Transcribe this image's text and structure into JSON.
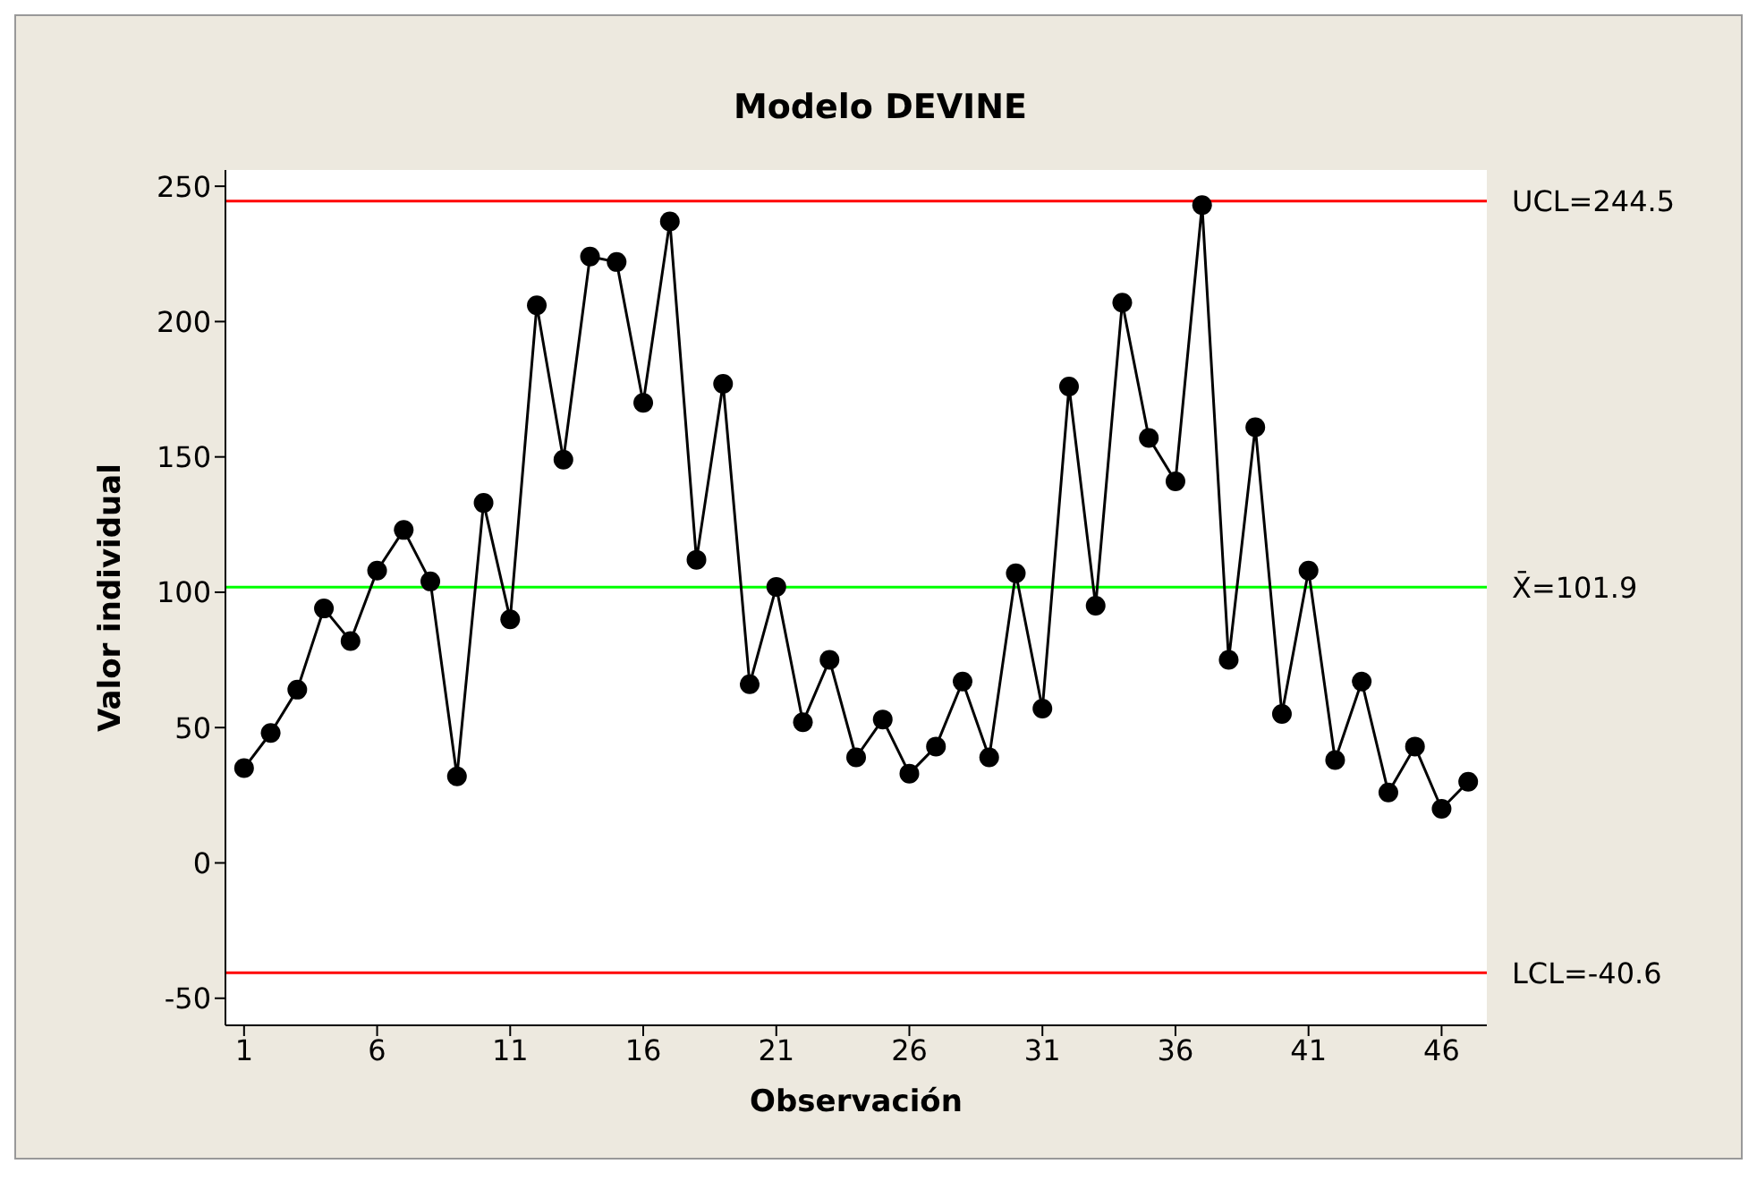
{
  "chart_data": {
    "type": "line",
    "title": "Modelo DEVINE",
    "xlabel": "Observación",
    "ylabel": "Valor individual",
    "x": [
      1,
      2,
      3,
      4,
      5,
      6,
      7,
      8,
      9,
      10,
      11,
      12,
      13,
      14,
      15,
      16,
      17,
      18,
      19,
      20,
      21,
      22,
      23,
      24,
      25,
      26,
      27,
      28,
      29,
      30,
      31,
      32,
      33,
      34,
      35,
      36,
      37,
      38,
      39,
      40,
      41,
      42,
      43,
      44,
      45,
      46,
      47
    ],
    "series": [
      {
        "color": "#000000",
        "values": [
          35,
          48,
          64,
          94,
          82,
          108,
          123,
          104,
          32,
          133,
          90,
          206,
          149,
          224,
          222,
          170,
          237,
          112,
          177,
          66,
          102,
          52,
          75,
          39,
          53,
          33,
          43,
          67,
          39,
          107,
          57,
          176,
          95,
          207,
          157,
          141,
          243,
          75,
          161,
          55,
          108,
          38,
          67,
          26,
          43,
          20,
          30
        ]
      }
    ],
    "xlim": [
      0.3,
      47.7
    ],
    "xticks": [
      1,
      6,
      11,
      16,
      21,
      26,
      31,
      36,
      41,
      46
    ],
    "ylim": [
      -60,
      256
    ],
    "yticks": [
      -50,
      0,
      50,
      100,
      150,
      200,
      250
    ],
    "ref_lines": [
      {
        "axis": "y",
        "value": 244.5,
        "label": "UCL=244.5",
        "color": "#ff0000"
      },
      {
        "axis": "y",
        "value": 101.9,
        "label": "X̄=101.9",
        "color": "#00ff00"
      },
      {
        "axis": "y",
        "value": -40.6,
        "label": "LCL=-40.6",
        "color": "#ff0000"
      }
    ],
    "marker": "circle",
    "line_style": "solid",
    "grid": false
  }
}
